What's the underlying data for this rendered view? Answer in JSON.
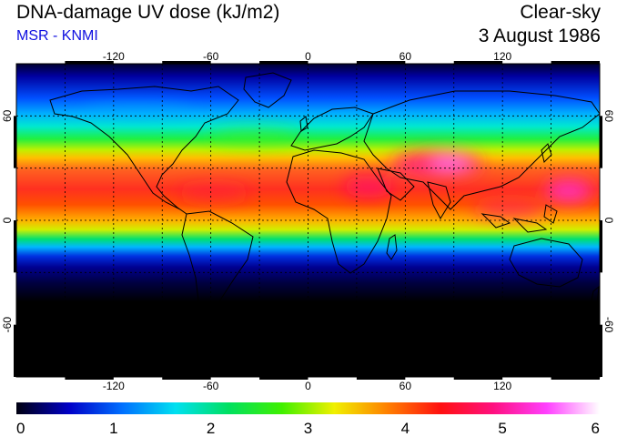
{
  "header": {
    "title": "DNA-damage UV dose (kJ/m2)",
    "subtitle": "MSR - KNMI",
    "condition": "Clear-sky",
    "date": "3 August 1986"
  },
  "map": {
    "projection": "equirectangular",
    "lon_range": [
      -180,
      180
    ],
    "lat_range": [
      -90,
      90
    ],
    "gridlines": "dashed",
    "lon_ticks": [
      {
        "value": -120,
        "label": "-120"
      },
      {
        "value": -60,
        "label": "-60"
      },
      {
        "value": 0,
        "label": "0"
      },
      {
        "value": 60,
        "label": "60"
      },
      {
        "value": 120,
        "label": "120"
      }
    ],
    "lat_ticks": [
      {
        "value": 60,
        "label": "60"
      },
      {
        "value": 0,
        "label": "0"
      },
      {
        "value": -60,
        "label": "-60"
      }
    ]
  },
  "colorbar": {
    "min": 0,
    "max": 6,
    "ticks": [
      "0",
      "1",
      "2",
      "3",
      "4",
      "5",
      "6"
    ],
    "colors": [
      "#000010",
      "#0000c8",
      "#0070ff",
      "#00e0f0",
      "#00e060",
      "#40f000",
      "#f0f000",
      "#ff8000",
      "#ff1010",
      "#ff1080",
      "#ff40ff",
      "#ffffff"
    ]
  }
}
